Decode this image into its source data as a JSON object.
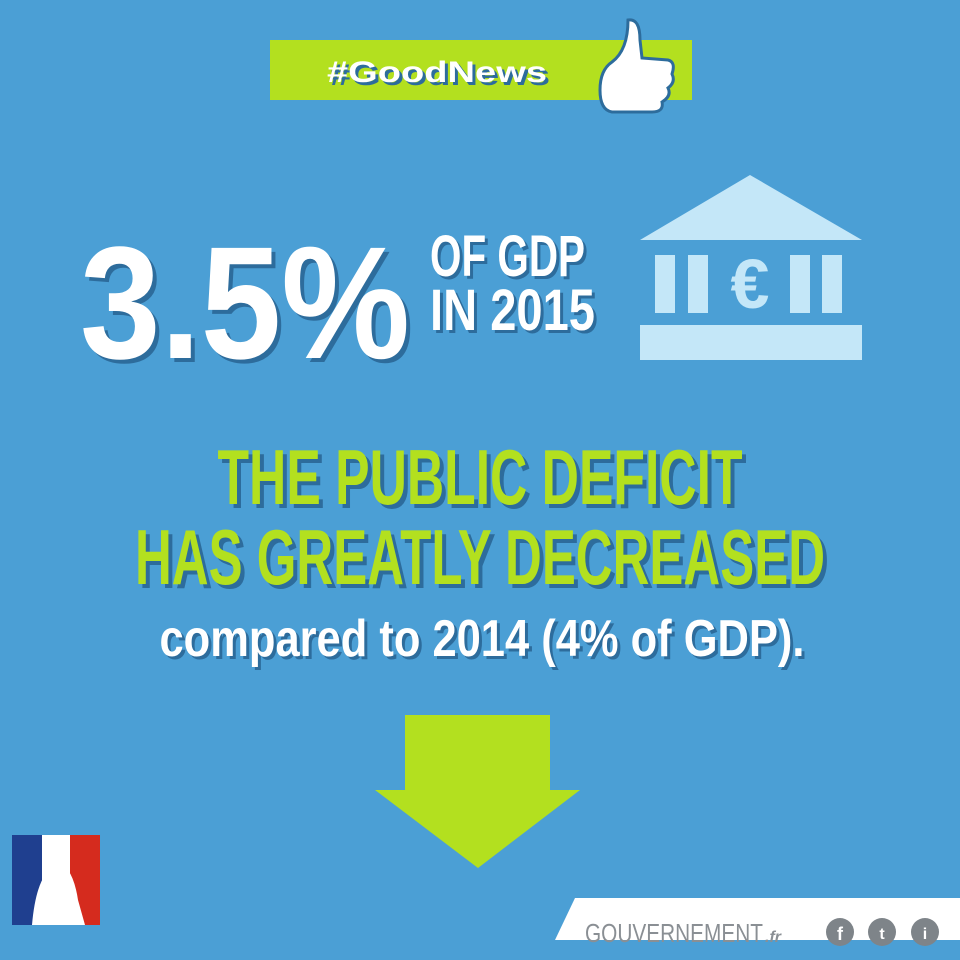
{
  "banner": {
    "hashtag": "#GoodNews"
  },
  "headline": {
    "figure": "3.5%",
    "line1": "OF GDP",
    "line2": "IN 2015",
    "icon_symbol": "€"
  },
  "message": {
    "line1": "THE PUBLIC DEFICIT",
    "line2": "HAS GREATLY DECREASED",
    "line3": "compared to 2014 (4% of GDP)."
  },
  "footer": {
    "brand": "GOUVERNEMENT",
    "brand_suffix": ".fr",
    "social": [
      "f",
      "t",
      "i"
    ]
  }
}
